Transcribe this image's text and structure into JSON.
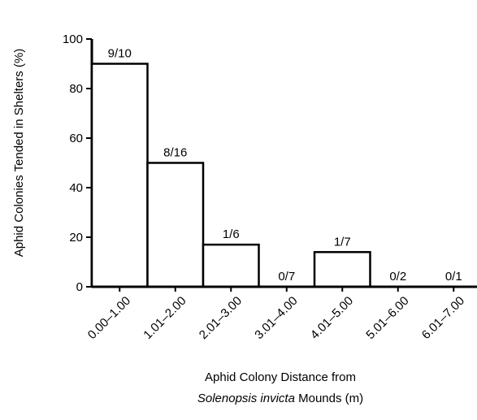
{
  "chart_data": {
    "type": "bar",
    "ylabel": "Aphid Colonies Tended in Shelters (%)",
    "xlabel_line1": "Aphid Colony Distance from",
    "xlabel_line2_italic": "Solenopsis invicta",
    "xlabel_line2_rest": " Mounds (m)",
    "categories": [
      "0.00–1.00",
      "1.01–2.00",
      "2.01–3.00",
      "3.01–4.00",
      "4.01–5.00",
      "5.01–6.00",
      "6.01–7.00"
    ],
    "values": [
      90,
      50,
      17,
      0,
      14,
      0,
      0
    ],
    "bar_labels": [
      "9/10",
      "8/16",
      "1/6",
      "0/7",
      "1/7",
      "0/2",
      "0/1"
    ],
    "yticks": [
      0,
      20,
      40,
      60,
      80,
      100
    ],
    "ylim": [
      0,
      100
    ],
    "grid": false,
    "legend": "none"
  }
}
